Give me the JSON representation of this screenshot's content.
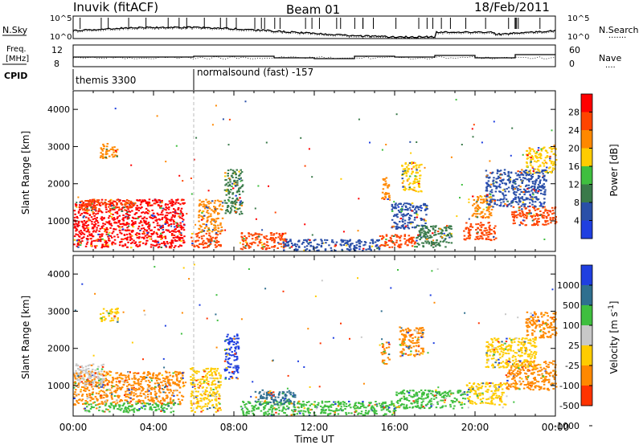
{
  "header": {
    "station": "Inuvik (fitACF)",
    "beam": "Beam 01",
    "date": "18/Feb/2011"
  },
  "top_panels": {
    "nsky_label": "N.Sky",
    "nsearch_label": "N.Search",
    "nsearch_line": "·······",
    "noise_tick_top": "10^5",
    "noise_tick_bottom": "10^0",
    "freq_label_line1": "Freq.",
    "freq_label_line2": "[MHz]",
    "freq_ticks": [
      "12",
      "8"
    ],
    "nave_label": "Nave",
    "nave_line": "····",
    "nave_ticks": [
      "60",
      "0"
    ],
    "cpid_label": "CPID",
    "cpid_segments": [
      {
        "start_hour": 0,
        "end_hour": 6,
        "label": "themis 3300"
      },
      {
        "start_hour": 6,
        "end_hour": 24,
        "label": "normalsound (fast) -157"
      }
    ]
  },
  "chart_data": [
    {
      "type": "heatmap",
      "name": "Power",
      "xlabel": "",
      "ylabel": "Slant Range [km]",
      "xlim": [
        0,
        24
      ],
      "ylim": [
        180,
        4500
      ],
      "yticks": [
        1000,
        2000,
        3000,
        4000
      ],
      "colorbar": {
        "label": "Power [dB]",
        "ticks": [
          "28",
          "24",
          "20",
          "16",
          "12",
          "8",
          "4"
        ],
        "levels": [
          {
            "from": 0,
            "to": 4,
            "color": "#1f3fe0"
          },
          {
            "from": 4,
            "to": 8,
            "color": "#2a4fa8"
          },
          {
            "from": 8,
            "to": 12,
            "color": "#3a7a4a"
          },
          {
            "from": 12,
            "to": 16,
            "color": "#3fbf3f"
          },
          {
            "from": 16,
            "to": 20,
            "color": "#ffcc00"
          },
          {
            "from": 20,
            "to": 24,
            "color": "#ff8800"
          },
          {
            "from": 24,
            "to": 28,
            "color": "#ff4400"
          },
          {
            "from": 28,
            "to": 32,
            "color": "#ff0000"
          }
        ]
      },
      "regions": [
        {
          "x": [
            0.0,
            5.5
          ],
          "y": [
            300,
            1600
          ],
          "value": 28
        },
        {
          "x": [
            0.3,
            3.0
          ],
          "y": [
            1300,
            1600
          ],
          "value": 24
        },
        {
          "x": [
            5.8,
            7.3
          ],
          "y": [
            300,
            700
          ],
          "value": 26
        },
        {
          "x": [
            6.2,
            7.4
          ],
          "y": [
            700,
            1600
          ],
          "value": 22
        },
        {
          "x": [
            7.5,
            8.4
          ],
          "y": [
            1200,
            2400
          ],
          "value": 8
        },
        {
          "x": [
            8.3,
            10.6
          ],
          "y": [
            260,
            700
          ],
          "value": 26
        },
        {
          "x": [
            10.4,
            15.2
          ],
          "y": [
            220,
            520
          ],
          "value": 6
        },
        {
          "x": [
            15.2,
            17.0
          ],
          "y": [
            300,
            650
          ],
          "value": 26
        },
        {
          "x": [
            15.3,
            15.7
          ],
          "y": [
            1600,
            2200
          ],
          "value": 20
        },
        {
          "x": [
            15.8,
            17.6
          ],
          "y": [
            800,
            1500
          ],
          "value": 6
        },
        {
          "x": [
            16.3,
            17.3
          ],
          "y": [
            1800,
            2600
          ],
          "value": 18
        },
        {
          "x": [
            17.0,
            18.8
          ],
          "y": [
            300,
            900
          ],
          "value": 8
        },
        {
          "x": [
            19.4,
            21.0
          ],
          "y": [
            500,
            1000
          ],
          "value": 26
        },
        {
          "x": [
            19.8,
            20.8
          ],
          "y": [
            1100,
            1700
          ],
          "value": 22
        },
        {
          "x": [
            21.8,
            24.0
          ],
          "y": [
            900,
            1400
          ],
          "value": 26
        },
        {
          "x": [
            22.5,
            24.0
          ],
          "y": [
            2300,
            3000
          ],
          "value": 18
        },
        {
          "x": [
            20.5,
            23.5
          ],
          "y": [
            1400,
            2400
          ],
          "value": 6
        },
        {
          "x": [
            1.3,
            2.2
          ],
          "y": [
            2700,
            3100
          ],
          "value": 20
        }
      ]
    },
    {
      "type": "heatmap",
      "name": "Velocity",
      "xlabel": "Time UT",
      "ylabel": "Slant Range [km]",
      "xlim": [
        0,
        24
      ],
      "ylim": [
        180,
        4500
      ],
      "yticks": [
        1000,
        2000,
        3000,
        4000
      ],
      "xticks": [
        "00:00",
        "04:00",
        "08:00",
        "12:00",
        "16:00",
        "20:00",
        "00:00"
      ],
      "colorbar": {
        "label": "Velocity [m s^-1]",
        "ticks": [
          "1000",
          "500",
          "100",
          "25",
          "-25",
          "-100",
          "-500",
          "-1000"
        ],
        "levels": [
          {
            "from": 500,
            "to": 1000,
            "color": "#1f3fe0"
          },
          {
            "from": 100,
            "to": 500,
            "color": "#2f6f8f"
          },
          {
            "from": 25,
            "to": 100,
            "color": "#3fbf3f"
          },
          {
            "from": -25,
            "to": 25,
            "color": "#c8c8c8"
          },
          {
            "from": -100,
            "to": -25,
            "color": "#ffcc00"
          },
          {
            "from": -500,
            "to": -100,
            "color": "#ff8800"
          },
          {
            "from": -1000,
            "to": -500,
            "color": "#ff3300"
          }
        ]
      },
      "regions": [
        {
          "x": [
            0.0,
            5.5
          ],
          "y": [
            500,
            1400
          ],
          "value": -200
        },
        {
          "x": [
            0.0,
            1.5
          ],
          "y": [
            1000,
            1600
          ],
          "value": 0
        },
        {
          "x": [
            0.5,
            5.0
          ],
          "y": [
            300,
            550
          ],
          "value": 60
        },
        {
          "x": [
            5.8,
            7.3
          ],
          "y": [
            300,
            1500
          ],
          "value": -60
        },
        {
          "x": [
            7.5,
            8.2
          ],
          "y": [
            1200,
            2400
          ],
          "value": 700
        },
        {
          "x": [
            8.3,
            16.0
          ],
          "y": [
            220,
            600
          ],
          "value": 60
        },
        {
          "x": [
            9.0,
            11.0
          ],
          "y": [
            500,
            900
          ],
          "value": 300
        },
        {
          "x": [
            15.3,
            15.7
          ],
          "y": [
            1600,
            2200
          ],
          "value": -300
        },
        {
          "x": [
            16.2,
            17.4
          ],
          "y": [
            1800,
            2600
          ],
          "value": -300
        },
        {
          "x": [
            16.0,
            19.5
          ],
          "y": [
            400,
            900
          ],
          "value": 60
        },
        {
          "x": [
            19.5,
            21.5
          ],
          "y": [
            500,
            1100
          ],
          "value": -60
        },
        {
          "x": [
            21.5,
            24.0
          ],
          "y": [
            900,
            1700
          ],
          "value": -300
        },
        {
          "x": [
            22.5,
            24.0
          ],
          "y": [
            2300,
            3000
          ],
          "value": -300
        },
        {
          "x": [
            20.5,
            23.0
          ],
          "y": [
            1500,
            2300
          ],
          "value": -60
        },
        {
          "x": [
            1.3,
            2.2
          ],
          "y": [
            2700,
            3100
          ],
          "value": -60
        }
      ]
    }
  ]
}
